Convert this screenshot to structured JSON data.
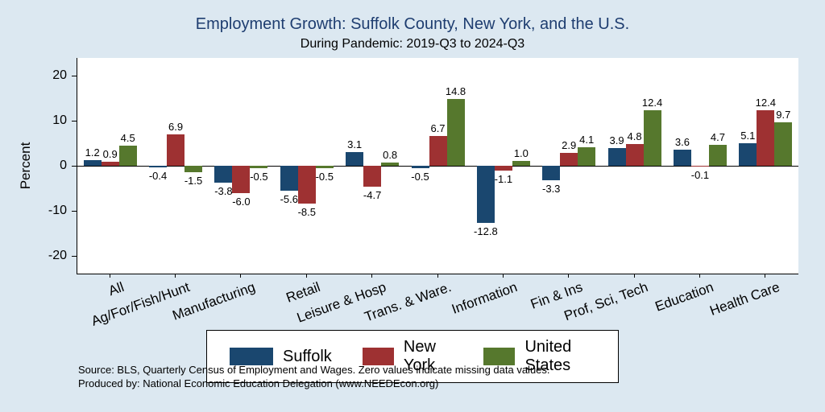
{
  "chart_data": {
    "type": "bar",
    "title": "Employment Growth: Suffolk County, New York, and the U.S.",
    "subtitle": "During Pandemic: 2019-Q3 to 2024-Q3",
    "ylabel": "Percent",
    "xlabel": "",
    "ylim": [
      -24,
      24
    ],
    "yticks": [
      20,
      10,
      0,
      -10,
      -20
    ],
    "grid": false,
    "legend_position": "bottom",
    "categories": [
      "All",
      "Ag/For/Fish/Hunt",
      "Manufacturing",
      "Retail",
      "Leisure & Hosp",
      "Trans. & Ware.",
      "Information",
      "Fin & Ins",
      "Prof, Sci, Tech",
      "Education",
      "Health Care"
    ],
    "series": [
      {
        "name": "Suffolk",
        "color": "#1a476f",
        "values": [
          1.2,
          -0.4,
          -3.8,
          -5.6,
          3.1,
          -0.5,
          -12.8,
          -3.3,
          3.9,
          3.6,
          5.1
        ]
      },
      {
        "name": "New York",
        "color": "#9e3132",
        "values": [
          0.9,
          6.9,
          -6.0,
          -8.5,
          -4.7,
          6.7,
          -1.1,
          2.9,
          4.8,
          -0.1,
          12.4
        ]
      },
      {
        "name": "United States",
        "color": "#56782d",
        "values": [
          4.5,
          -1.5,
          -0.5,
          -0.5,
          0.8,
          14.8,
          1.0,
          4.1,
          12.4,
          4.7,
          9.7
        ]
      }
    ]
  },
  "footer": {
    "source": "Source: BLS, Quarterly Census of Employment and Wages. Zero values indicate missing data values.",
    "produced_by": "Produced by: National Economic Education Delegation (www.NEEDEcon.org)"
  },
  "colors": {
    "background": "#dce8f1",
    "title_text": "#1e3d70",
    "axis_line": "#000000",
    "suffolk": "#1a476f",
    "new_york": "#9e3132",
    "united_states": "#56782d"
  }
}
